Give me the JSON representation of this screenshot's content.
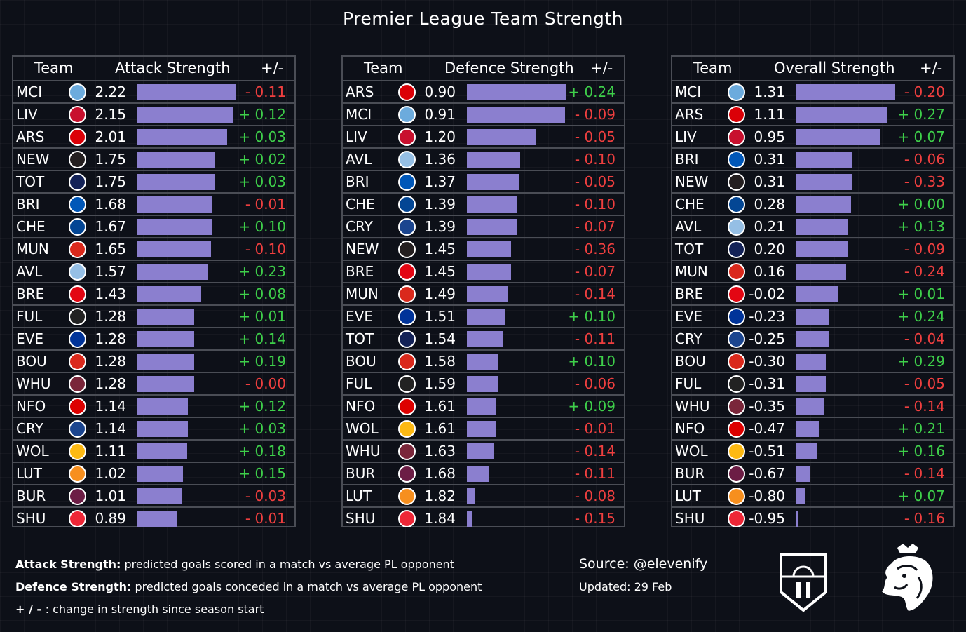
{
  "title": "Premier League Team Strength",
  "colors": {
    "bar": "#8b7fcf",
    "positive": "#3ecf4a",
    "negative": "#ef3f3f",
    "background": "#0d1018",
    "grid": "#4a4d55"
  },
  "chart_data": [
    {
      "type": "table",
      "columns": [
        "Team",
        "Attack Strength",
        "+/-"
      ],
      "rows": [
        {
          "team": "MCI",
          "value": "2.22",
          "change": "- 0.11"
        },
        {
          "team": "LIV",
          "value": "2.15",
          "change": "+ 0.12"
        },
        {
          "team": "ARS",
          "value": "2.01",
          "change": "+ 0.03"
        },
        {
          "team": "NEW",
          "value": "1.75",
          "change": "+ 0.02"
        },
        {
          "team": "TOT",
          "value": "1.75",
          "change": "+ 0.03"
        },
        {
          "team": "BRI",
          "value": "1.68",
          "change": "- 0.01"
        },
        {
          "team": "CHE",
          "value": "1.67",
          "change": "+ 0.10"
        },
        {
          "team": "MUN",
          "value": "1.65",
          "change": "- 0.10"
        },
        {
          "team": "AVL",
          "value": "1.57",
          "change": "+ 0.23"
        },
        {
          "team": "BRE",
          "value": "1.43",
          "change": "+ 0.08"
        },
        {
          "team": "FUL",
          "value": "1.28",
          "change": "+ 0.01"
        },
        {
          "team": "EVE",
          "value": "1.28",
          "change": "+ 0.14"
        },
        {
          "team": "BOU",
          "value": "1.28",
          "change": "+ 0.19"
        },
        {
          "team": "WHU",
          "value": "1.28",
          "change": "- 0.00"
        },
        {
          "team": "NFO",
          "value": "1.14",
          "change": "+ 0.12"
        },
        {
          "team": "CRY",
          "value": "1.14",
          "change": "+ 0.03"
        },
        {
          "team": "WOL",
          "value": "1.11",
          "change": "+ 0.18"
        },
        {
          "team": "LUT",
          "value": "1.02",
          "change": "+ 0.15"
        },
        {
          "team": "BUR",
          "value": "1.01",
          "change": "- 0.03"
        },
        {
          "team": "SHU",
          "value": "0.89",
          "change": "- 0.01"
        }
      ]
    },
    {
      "type": "table",
      "columns": [
        "Team",
        "Defence Strength",
        "+/-"
      ],
      "rows": [
        {
          "team": "ARS",
          "value": "0.90",
          "change": "+ 0.24"
        },
        {
          "team": "MCI",
          "value": "0.91",
          "change": "- 0.09"
        },
        {
          "team": "LIV",
          "value": "1.20",
          "change": "- 0.05"
        },
        {
          "team": "AVL",
          "value": "1.36",
          "change": "- 0.10"
        },
        {
          "team": "BRI",
          "value": "1.37",
          "change": "- 0.05"
        },
        {
          "team": "CHE",
          "value": "1.39",
          "change": "- 0.10"
        },
        {
          "team": "CRY",
          "value": "1.39",
          "change": "- 0.07"
        },
        {
          "team": "NEW",
          "value": "1.45",
          "change": "- 0.36"
        },
        {
          "team": "BRE",
          "value": "1.45",
          "change": "- 0.07"
        },
        {
          "team": "MUN",
          "value": "1.49",
          "change": "- 0.14"
        },
        {
          "team": "EVE",
          "value": "1.51",
          "change": "+ 0.10"
        },
        {
          "team": "TOT",
          "value": "1.54",
          "change": "- 0.11"
        },
        {
          "team": "BOU",
          "value": "1.58",
          "change": "+ 0.10"
        },
        {
          "team": "FUL",
          "value": "1.59",
          "change": "- 0.06"
        },
        {
          "team": "NFO",
          "value": "1.61",
          "change": "+ 0.09"
        },
        {
          "team": "WOL",
          "value": "1.61",
          "change": "- 0.01"
        },
        {
          "team": "WHU",
          "value": "1.63",
          "change": "- 0.14"
        },
        {
          "team": "BUR",
          "value": "1.68",
          "change": "- 0.11"
        },
        {
          "team": "LUT",
          "value": "1.82",
          "change": "- 0.08"
        },
        {
          "team": "SHU",
          "value": "1.84",
          "change": "- 0.15"
        }
      ]
    },
    {
      "type": "table",
      "columns": [
        "Team",
        "Overall Strength",
        "+/-"
      ],
      "rows": [
        {
          "team": "MCI",
          "value": "1.31",
          "change": "- 0.20"
        },
        {
          "team": "ARS",
          "value": "1.11",
          "change": "+ 0.27"
        },
        {
          "team": "LIV",
          "value": "0.95",
          "change": "+ 0.07"
        },
        {
          "team": "BRI",
          "value": "0.31",
          "change": "- 0.06"
        },
        {
          "team": "NEW",
          "value": "0.31",
          "change": "- 0.33"
        },
        {
          "team": "CHE",
          "value": "0.28",
          "change": "+ 0.00"
        },
        {
          "team": "AVL",
          "value": "0.21",
          "change": "+ 0.13"
        },
        {
          "team": "TOT",
          "value": "0.20",
          "change": "- 0.09"
        },
        {
          "team": "MUN",
          "value": "0.16",
          "change": "- 0.24"
        },
        {
          "team": "BRE",
          "value": "-0.02",
          "change": "+ 0.01"
        },
        {
          "team": "EVE",
          "value": "-0.23",
          "change": "+ 0.24"
        },
        {
          "team": "CRY",
          "value": "-0.25",
          "change": "- 0.04"
        },
        {
          "team": "BOU",
          "value": "-0.30",
          "change": "+ 0.29"
        },
        {
          "team": "FUL",
          "value": "-0.31",
          "change": "- 0.05"
        },
        {
          "team": "WHU",
          "value": "-0.35",
          "change": "- 0.14"
        },
        {
          "team": "NFO",
          "value": "-0.47",
          "change": "+ 0.21"
        },
        {
          "team": "WOL",
          "value": "-0.51",
          "change": "+ 0.16"
        },
        {
          "team": "BUR",
          "value": "-0.67",
          "change": "- 0.14"
        },
        {
          "team": "LUT",
          "value": "-0.80",
          "change": "+ 0.07"
        },
        {
          "team": "SHU",
          "value": "-0.95",
          "change": "- 0.16"
        }
      ]
    }
  ],
  "footer": {
    "attack_label": "Attack Strength:",
    "attack_text": " predicted goals scored in a match vs average PL opponent",
    "defence_label": "Defence Strength:",
    "defence_text": " predicted goals conceded in a match vs average PL opponent",
    "change_label": "+ / - ",
    "change_text": " : change in strength since season start",
    "source": "Source: @elevenify",
    "updated": "Updated: 29 Feb"
  },
  "icons": [
    "elevenify-shield-logo",
    "premier-league-lion-logo",
    "club-crest-icon"
  ],
  "crest_colors": {
    "MCI": "#6cabdd",
    "LIV": "#c8102e",
    "ARS": "#db0007",
    "NEW": "#241f20",
    "TOT": "#132257",
    "BRI": "#0057b8",
    "CHE": "#034694",
    "MUN": "#da291c",
    "AVL": "#95bfe5",
    "BRE": "#e30613",
    "FUL": "#222222",
    "EVE": "#003399",
    "BOU": "#da291c",
    "WHU": "#7a263a",
    "NFO": "#dd0000",
    "CRY": "#1b458f",
    "WOL": "#fdb913",
    "LUT": "#f78f1e",
    "BUR": "#6c1d45",
    "SHU": "#ee2737"
  }
}
